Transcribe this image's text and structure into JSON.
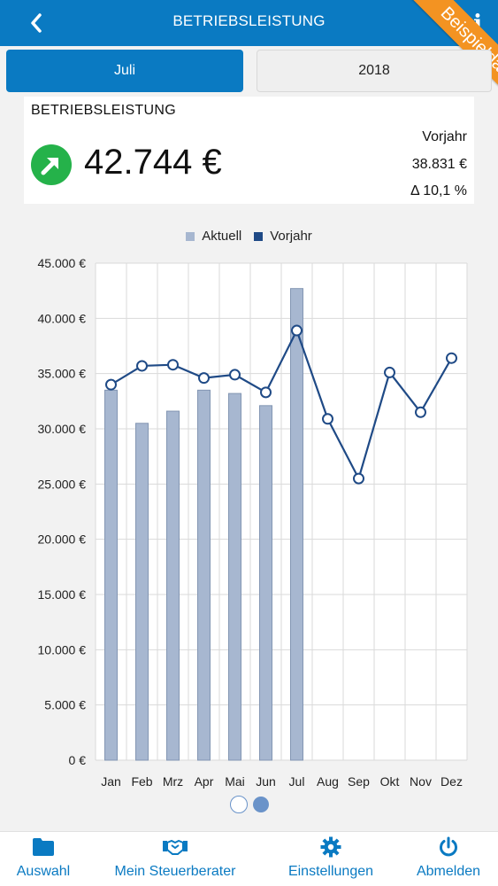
{
  "header": {
    "title": "BETRIEBSLEISTUNG",
    "ribbon": "Beispieldaten",
    "info_glyph": "i"
  },
  "tabs": [
    {
      "label": "Juli",
      "active": true
    },
    {
      "label": "2018",
      "active": false
    }
  ],
  "kpi": {
    "label": "BETRIEBSLEISTUNG",
    "value": "42.744 €",
    "trend": "up",
    "prev_label": "Vorjahr",
    "prev_value": "38.831 €",
    "delta": "Δ 10,1 %"
  },
  "colors": {
    "primary": "#0a7ac2",
    "ribbon": "#f39322",
    "up": "#25b24a",
    "bar": "#a7b7d0",
    "line": "#1f4a86"
  },
  "chart_data": {
    "type": "bar",
    "categories": [
      "Jan",
      "Feb",
      "Mrz",
      "Apr",
      "Mai",
      "Jun",
      "Jul",
      "Aug",
      "Sep",
      "Okt",
      "Nov",
      "Dez"
    ],
    "series": [
      {
        "name": "Aktuell",
        "type": "bar",
        "values": [
          33500,
          30500,
          31600,
          33500,
          33200,
          32100,
          42700,
          null,
          null,
          null,
          null,
          null
        ]
      },
      {
        "name": "Vorjahr",
        "type": "line",
        "values": [
          34000,
          35700,
          35800,
          34600,
          34900,
          33300,
          38900,
          30900,
          25500,
          35100,
          31500,
          36400
        ]
      }
    ],
    "ylim": [
      0,
      45000
    ],
    "yticks": [
      "0 €",
      "5.000 €",
      "10.000 €",
      "15.000 €",
      "20.000 €",
      "25.000 €",
      "30.000 €",
      "35.000 €",
      "40.000 €",
      "45.000 €"
    ],
    "grid": true,
    "legend": "top"
  },
  "pager": {
    "pages": 2,
    "current": 2
  },
  "bottom_nav": [
    {
      "label": "Auswahl",
      "icon": "folder-icon"
    },
    {
      "label": "Mein Steuerberater",
      "icon": "handshake-icon"
    },
    {
      "label": "Einstellungen",
      "icon": "gear-icon"
    },
    {
      "label": "Abmelden",
      "icon": "power-icon"
    }
  ]
}
